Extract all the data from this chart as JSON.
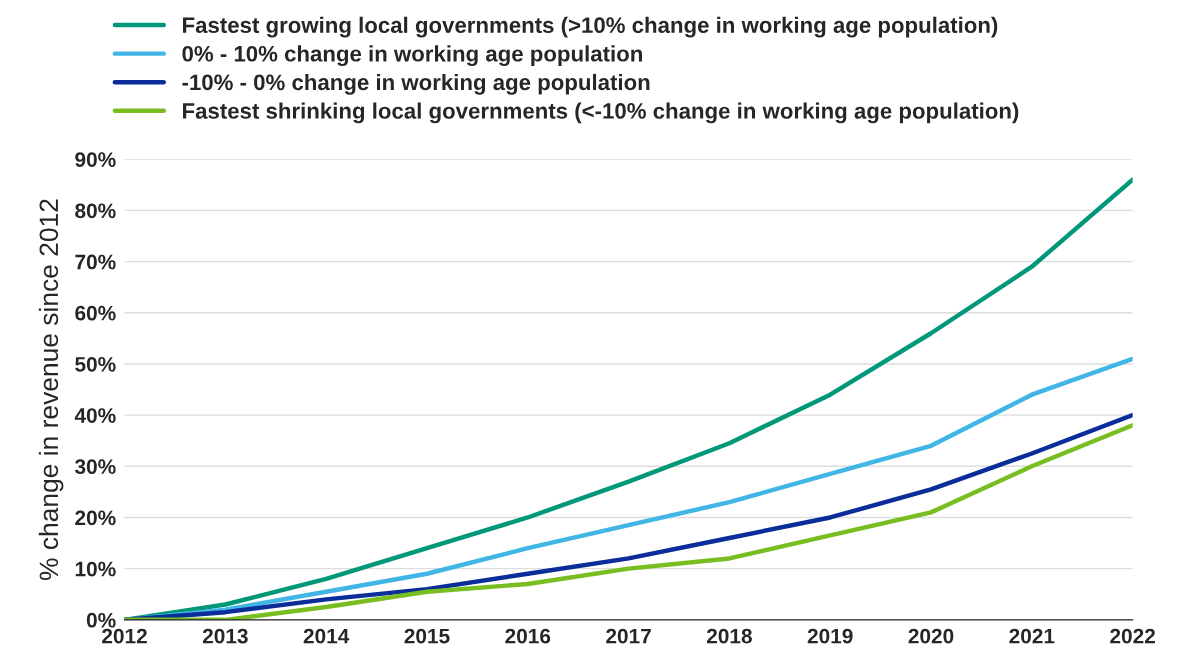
{
  "chart_data": {
    "type": "line",
    "ylabel": "% change in revenue since 2012",
    "x": [
      2012,
      2013,
      2014,
      2015,
      2016,
      2017,
      2018,
      2019,
      2020,
      2021,
      2022
    ],
    "xlim": [
      2012,
      2022
    ],
    "xticks": [
      2012,
      2013,
      2014,
      2015,
      2016,
      2017,
      2018,
      2019,
      2020,
      2021,
      2022
    ],
    "ylim": [
      0,
      90
    ],
    "yticks": [
      {
        "value": 0,
        "label": "0%"
      },
      {
        "value": 10,
        "label": "10%"
      },
      {
        "value": 20,
        "label": "20%"
      },
      {
        "value": 30,
        "label": "30%"
      },
      {
        "value": 40,
        "label": "40%"
      },
      {
        "value": 50,
        "label": "50%"
      },
      {
        "value": 60,
        "label": "60%"
      },
      {
        "value": 70,
        "label": "70%"
      },
      {
        "value": 80,
        "label": "80%"
      },
      {
        "value": 90,
        "label": "90%"
      }
    ],
    "grid": "y",
    "legend": "top",
    "line_style": "solid",
    "series": [
      {
        "name": "Fastest growing local governments (>10% change in working age population)",
        "color": "#009878",
        "values": [
          0,
          3,
          8,
          14,
          20,
          27,
          34.5,
          44,
          56,
          69,
          86
        ]
      },
      {
        "name": "0% - 10% change in working age population",
        "color": "#41b6e6",
        "values": [
          0,
          2,
          5.5,
          9,
          14,
          18.5,
          23,
          28.5,
          34,
          44,
          51
        ]
      },
      {
        "name": "-10% - 0% change in working age population",
        "color": "#0a2d9a",
        "values": [
          0,
          1.5,
          4,
          6,
          9,
          12,
          16,
          20,
          25.5,
          32.5,
          40
        ]
      },
      {
        "name": "Fastest shrinking local governments (<-10% change in working age population)",
        "color": "#78be20",
        "values": [
          0,
          0,
          2.5,
          5.5,
          7,
          10,
          12,
          16.5,
          21,
          30,
          38
        ]
      }
    ]
  }
}
